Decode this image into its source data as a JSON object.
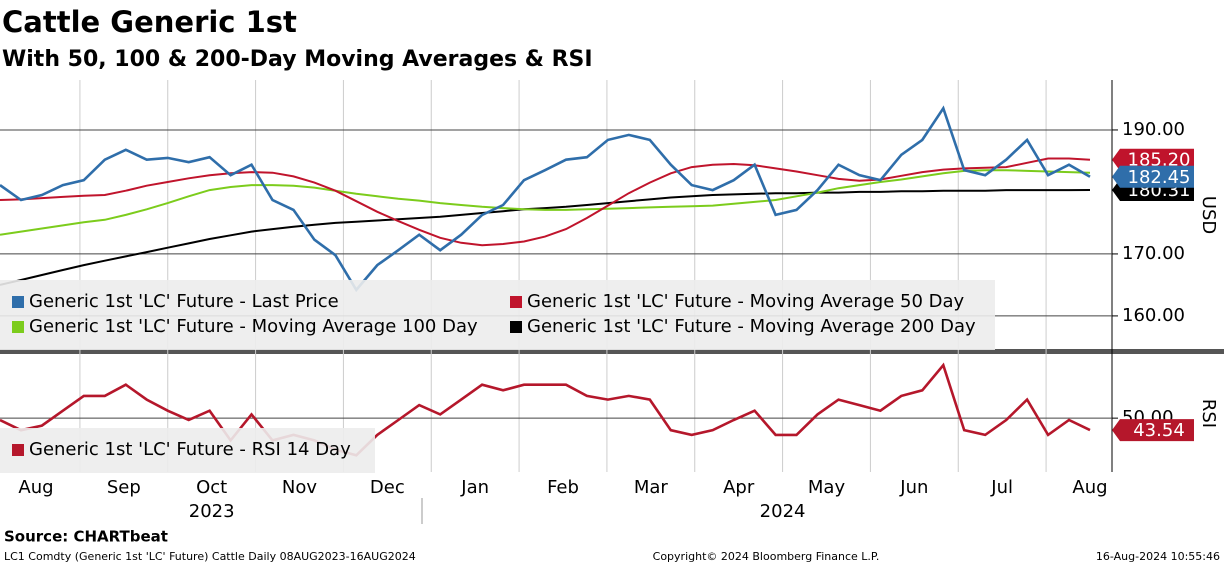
{
  "chart_data": [
    {
      "type": "line",
      "title": "Cattle Generic 1st",
      "subtitle": "With 50, 100 & 200-Day Moving Averages & RSI",
      "months": [
        "Aug",
        "Sep",
        "Oct",
        "Nov",
        "Dec",
        "Jan",
        "Feb",
        "Mar",
        "Apr",
        "May",
        "Jun",
        "Jul",
        "Aug"
      ],
      "years": [
        "2023",
        "2024"
      ],
      "y_label": "USD",
      "ylim": [
        154.5,
        198.06
      ],
      "yticks": [
        {
          "value": 160,
          "label": "160.00"
        },
        {
          "value": 170,
          "label": "170.00"
        },
        {
          "value": 190,
          "label": "190.00"
        }
      ],
      "grid": true,
      "series": [
        {
          "name": "Generic 1st 'LC' Future - Last Price",
          "color": "#2f6eaa",
          "last_label": "182.45",
          "values": [
            181.1,
            178.7,
            179.5,
            181.1,
            181.9,
            185.2,
            186.8,
            185.2,
            185.5,
            184.8,
            185.6,
            182.7,
            184.4,
            178.7,
            177.1,
            172.3,
            169.8,
            164.2,
            168.2,
            170.6,
            173.1,
            170.6,
            173.1,
            176.3,
            177.9,
            181.9,
            183.5,
            185.2,
            185.6,
            188.4,
            189.2,
            188.4,
            184.4,
            181.1,
            180.3,
            181.9,
            184.4,
            176.3,
            177.1,
            180.3,
            184.4,
            182.7,
            181.9,
            186.0,
            188.4,
            193.5,
            183.5,
            182.7,
            185.2,
            188.4,
            182.7,
            184.4,
            182.45
          ]
        },
        {
          "name": "Generic 1st 'LC' Future - Moving Average 50 Day",
          "color": "#c0142c",
          "last_label": "185.20",
          "values": [
            178.7,
            178.8,
            179.0,
            179.2,
            179.4,
            179.5,
            180.2,
            181.0,
            181.6,
            182.2,
            182.7,
            183.0,
            183.2,
            183.1,
            182.5,
            181.5,
            180.2,
            178.5,
            176.8,
            175.3,
            173.9,
            172.6,
            171.8,
            171.4,
            171.6,
            172.0,
            172.8,
            174.0,
            175.8,
            177.8,
            179.8,
            181.5,
            183.0,
            184.0,
            184.4,
            184.5,
            184.3,
            183.8,
            183.3,
            182.7,
            182.1,
            181.8,
            182.0,
            182.6,
            183.2,
            183.6,
            183.8,
            183.9,
            184.0,
            184.7,
            185.4,
            185.4,
            185.2
          ]
        },
        {
          "name": "Generic 1st 'LC' Future - Moving Average 100 Day",
          "color": "#7ccc1c",
          "values": [
            173.1,
            173.6,
            174.1,
            174.6,
            175.1,
            175.5,
            176.3,
            177.2,
            178.2,
            179.3,
            180.3,
            180.8,
            181.1,
            181.1,
            181.0,
            180.7,
            180.2,
            179.7,
            179.3,
            178.9,
            178.6,
            178.2,
            177.9,
            177.6,
            177.4,
            177.2,
            177.1,
            177.1,
            177.2,
            177.3,
            177.4,
            177.5,
            177.6,
            177.7,
            177.8,
            178.1,
            178.4,
            178.7,
            179.3,
            179.9,
            180.6,
            181.1,
            181.6,
            182.0,
            182.5,
            183.0,
            183.4,
            183.5,
            183.5,
            183.4,
            183.3,
            183.2,
            183.1
          ]
        },
        {
          "name": "Generic 1st 'LC' Future - Moving Average 200 Day",
          "color": "#000000",
          "last_label": "180.31",
          "values": [
            165.0,
            165.8,
            166.6,
            167.4,
            168.2,
            168.9,
            169.6,
            170.3,
            171.0,
            171.7,
            172.4,
            173.0,
            173.6,
            174.0,
            174.4,
            174.7,
            175.0,
            175.2,
            175.4,
            175.6,
            175.8,
            176.0,
            176.3,
            176.6,
            176.9,
            177.2,
            177.4,
            177.6,
            177.9,
            178.2,
            178.5,
            178.8,
            179.1,
            179.3,
            179.5,
            179.6,
            179.7,
            179.8,
            179.8,
            179.9,
            179.9,
            180.0,
            180.0,
            180.1,
            180.1,
            180.2,
            180.2,
            180.2,
            180.3,
            180.3,
            180.3,
            180.3,
            180.31
          ]
        }
      ],
      "source": "Source: CHARTbeat",
      "footer_left": "LC1 Comdty (Generic 1st 'LC' Future) Cattle  Daily 08AUG2023-16AUG2024",
      "footer_center": "Copyright© 2024 Bloomberg Finance L.P.",
      "footer_right": "16-Aug-2024 10:55:46"
    },
    {
      "type": "line",
      "y_label": "RSI",
      "ylim": [
        21,
        84
      ],
      "yticks": [
        {
          "value": 50,
          "label": "50.00"
        }
      ],
      "grid": true,
      "series": [
        {
          "name": "Generic 1st 'LC' Future - RSI 14 Day",
          "color": "#b5172b",
          "last_label": "43.54",
          "values": [
            49,
            43.5,
            46,
            54,
            62,
            62,
            68,
            60,
            54,
            49,
            54,
            38,
            52,
            38,
            41,
            38,
            33,
            30,
            41,
            49,
            57,
            52,
            60,
            68,
            65,
            68,
            68,
            68,
            62,
            60,
            62,
            60,
            43.5,
            41,
            43.5,
            49,
            54,
            41,
            41,
            52,
            60,
            57,
            54,
            62,
            65,
            78.5,
            43.5,
            41,
            49,
            60,
            41,
            49,
            43.54
          ]
        }
      ]
    }
  ]
}
